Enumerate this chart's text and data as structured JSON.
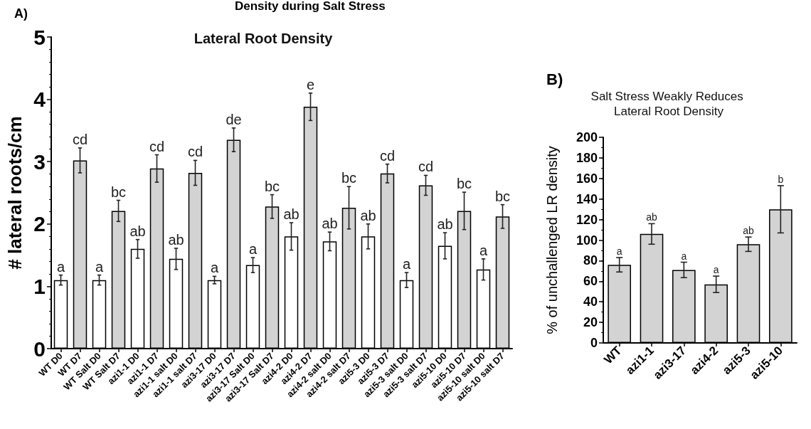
{
  "chart_data": [
    {
      "type": "bar",
      "title": "Lateral Root Density",
      "ylabel": "# lateral roots/cm",
      "categories": [
        "WT D0",
        "WT D7",
        "WT Salt D0",
        "WT Salt D7",
        "azi1-1 D0",
        "azi1-1 D7",
        "azi1-1 salt D0",
        "azi1-1 salt D7",
        "azi3-17 D0",
        "azi3-17 D7",
        "azi3-17 Salt D0",
        "azi3-17 Salt D7",
        "azi4-2 D0",
        "azi4-2 D7",
        "azi4-2 salt D0",
        "azi4-2 salt D7",
        "azi5-3 D0",
        "azi5-3 D7",
        "azi5-3 salt D0",
        "azi5-3 salt D7",
        "azi5-10 D0",
        "azi5-10 D7",
        "azi5-10 salt D0",
        "azi5-10 salt D7"
      ],
      "values": [
        1.1,
        3.02,
        1.1,
        2.21,
        1.6,
        2.89,
        1.44,
        2.82,
        1.1,
        3.35,
        1.34,
        2.28,
        1.8,
        3.88,
        1.72,
        2.26,
        1.8,
        2.81,
        1.1,
        2.62,
        1.65,
        2.21,
        1.27,
        2.12
      ],
      "errors": [
        0.08,
        0.2,
        0.08,
        0.17,
        0.15,
        0.22,
        0.17,
        0.2,
        0.06,
        0.19,
        0.12,
        0.19,
        0.22,
        0.22,
        0.15,
        0.34,
        0.2,
        0.15,
        0.12,
        0.16,
        0.21,
        0.3,
        0.17,
        0.19
      ],
      "colors": [
        "#ffffff",
        "#d3d3d3",
        "#ffffff",
        "#d3d3d3",
        "#ffffff",
        "#d3d3d3",
        "#ffffff",
        "#d3d3d3",
        "#ffffff",
        "#d3d3d3",
        "#ffffff",
        "#d3d3d3",
        "#ffffff",
        "#d3d3d3",
        "#ffffff",
        "#d3d3d3",
        "#ffffff",
        "#d3d3d3",
        "#ffffff",
        "#d3d3d3",
        "#ffffff",
        "#d3d3d3",
        "#ffffff",
        "#d3d3d3"
      ],
      "ylim": [
        0,
        5
      ],
      "yticks": [
        0,
        1,
        2,
        3,
        4,
        5
      ],
      "grid": false,
      "annotations": [
        "A)",
        "Density during Salt Stress",
        {
          "text": "a",
          "x": "WT D0",
          "y": 1.18
        },
        {
          "text": "cd",
          "x": "WT D7",
          "y": 3.22
        },
        {
          "text": "a",
          "x": "WT Salt D0",
          "y": 1.18
        },
        {
          "text": "bc",
          "x": "WT Salt D7",
          "y": 2.38
        },
        {
          "text": "ab",
          "x": "azi1-1 D0",
          "y": 1.75
        },
        {
          "text": "cd",
          "x": "azi1-1 D7",
          "y": 3.11
        },
        {
          "text": "ab",
          "x": "azi1-1 salt D0",
          "y": 1.61
        },
        {
          "text": "cd",
          "x": "azi1-1 salt D7",
          "y": 3.02
        },
        {
          "text": "a",
          "x": "azi3-17 D0",
          "y": 1.16
        },
        {
          "text": "de",
          "x": "azi3-17 D7",
          "y": 3.54
        },
        {
          "text": "a",
          "x": "azi3-17 Salt D0",
          "y": 1.46
        },
        {
          "text": "bc",
          "x": "azi3-17 Salt D7",
          "y": 2.47
        },
        {
          "text": "ab",
          "x": "azi4-2 D0",
          "y": 2.02
        },
        {
          "text": "e",
          "x": "azi4-2 D7",
          "y": 4.1
        },
        {
          "text": "ab",
          "x": "azi4-2 salt D0",
          "y": 1.87
        },
        {
          "text": "bc",
          "x": "azi4-2 salt D7",
          "y": 2.6
        },
        {
          "text": "ab",
          "x": "azi5-3 D0",
          "y": 2.0
        },
        {
          "text": "cd",
          "x": "azi5-3 D7",
          "y": 2.96
        },
        {
          "text": "a",
          "x": "azi5-3 salt D0",
          "y": 1.22
        },
        {
          "text": "cd",
          "x": "azi5-3 salt D7",
          "y": 2.78
        },
        {
          "text": "ab",
          "x": "azi5-10 D0",
          "y": 1.86
        },
        {
          "text": "bc",
          "x": "azi5-10 D7",
          "y": 2.51
        },
        {
          "text": "a",
          "x": "azi5-10 salt D0",
          "y": 1.44
        },
        {
          "text": "bc",
          "x": "azi5-10 salt D7",
          "y": 2.31
        }
      ]
    },
    {
      "type": "bar",
      "title": "Salt Stress Weakly Reduces Lateral Root Density",
      "ylabel": "% of unchallenged LR density",
      "categories": [
        "WT",
        "azi1-1",
        "azi3-17",
        "azi4-2",
        "azi5-3",
        "azi5-10"
      ],
      "values": [
        76,
        106,
        71,
        57,
        96,
        130
      ],
      "errors": [
        7,
        10,
        7.5,
        8,
        7,
        23
      ],
      "color": "#d3d3d3",
      "ylim": [
        0,
        200
      ],
      "yticks": [
        0,
        20,
        40,
        60,
        80,
        100,
        120,
        140,
        160,
        180,
        200
      ],
      "grid": false,
      "annotations": [
        "B)",
        {
          "text": "a",
          "x": "WT",
          "y": 83
        },
        {
          "text": "ab",
          "x": "azi1-1",
          "y": 116
        },
        {
          "text": "a",
          "x": "azi3-17",
          "y": 78.5
        },
        {
          "text": "a",
          "x": "azi4-2",
          "y": 65
        },
        {
          "text": "ab",
          "x": "azi5-3",
          "y": 103
        },
        {
          "text": "b",
          "x": "azi5-10",
          "y": 153
        }
      ]
    }
  ]
}
